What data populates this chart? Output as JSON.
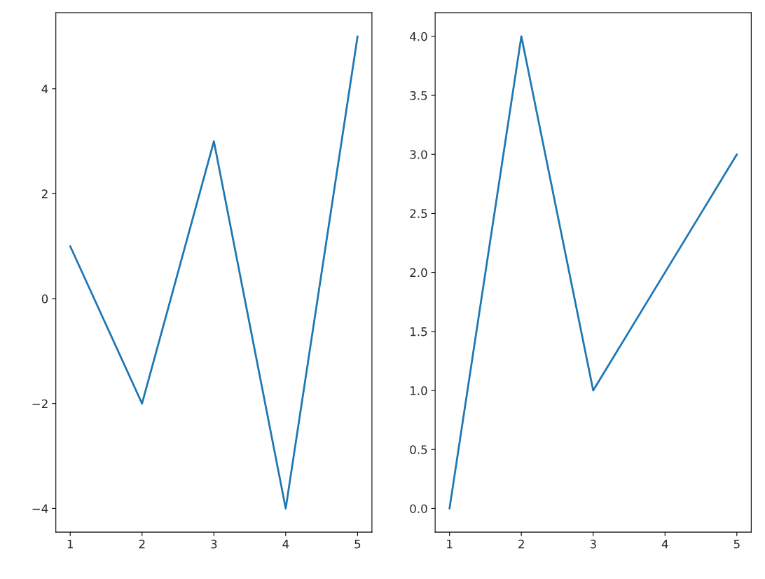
{
  "chart_data": [
    {
      "type": "line",
      "x": [
        1,
        2,
        3,
        4,
        5
      ],
      "series": [
        {
          "color": "#1f77b4",
          "values": [
            1,
            -2,
            3,
            -4,
            5
          ]
        }
      ],
      "xlim": [
        0.8,
        5.2
      ],
      "ylim": [
        -4.45,
        5.45
      ],
      "xticks": [
        1,
        2,
        3,
        4,
        5
      ],
      "yticks": [
        {
          "value": -4,
          "label": "−4"
        },
        {
          "value": -2,
          "label": "−2"
        },
        0,
        2,
        4
      ],
      "grid": false,
      "legend": false,
      "marker": "none",
      "line_style": "solid"
    },
    {
      "type": "line",
      "x": [
        1,
        2,
        3,
        4,
        5
      ],
      "series": [
        {
          "color": "#1f77b4",
          "values": [
            0,
            4,
            1,
            2,
            3
          ]
        }
      ],
      "xlim": [
        0.8,
        5.2
      ],
      "ylim": [
        -0.2,
        4.2
      ],
      "xticks": [
        1,
        2,
        3,
        4,
        5
      ],
      "yticks": [
        {
          "value": 0,
          "label": "0.0"
        },
        {
          "value": 0.5,
          "label": "0.5"
        },
        {
          "value": 1,
          "label": "1.0"
        },
        {
          "value": 1.5,
          "label": "1.5"
        },
        {
          "value": 2,
          "label": "2.0"
        },
        {
          "value": 2.5,
          "label": "2.5"
        },
        {
          "value": 3,
          "label": "3.0"
        },
        {
          "value": 3.5,
          "label": "3.5"
        },
        {
          "value": 4,
          "label": "4.0"
        }
      ],
      "grid": false,
      "legend": false,
      "marker": "none",
      "line_style": "solid"
    }
  ]
}
